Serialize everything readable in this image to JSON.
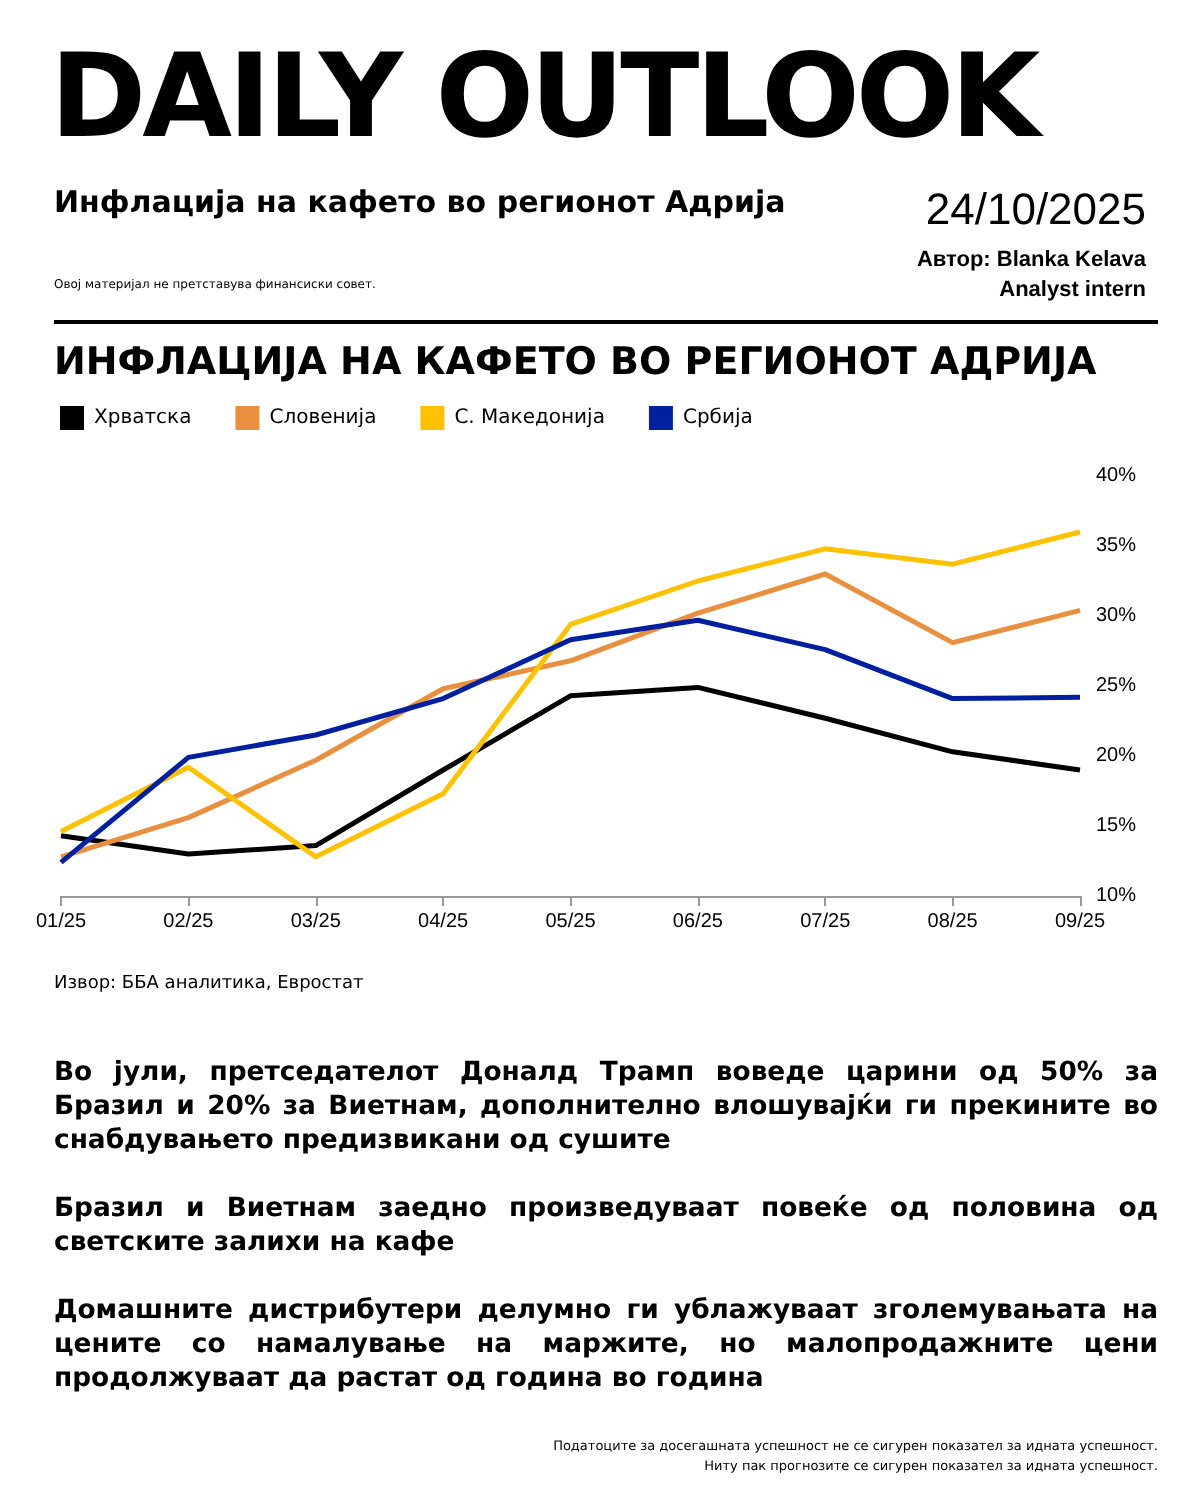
{
  "chart_data": {
    "type": "line",
    "title": "ИНФЛАЦИЈА НА КАФЕТО ВО РЕГИОНОТ АДРИЈА",
    "subtitle": "Инфлација на кафето во регионот Адрија",
    "annotations": [
      "DAILY OUTLOOK",
      "Овој материјал не претставува финансиски совет.",
      "24/10/2025",
      "Автор: Blanka Kelava",
      "Analyst intern",
      "Извор: ББА аналитика, Евростат",
      "Во јули, претседателот Доналд Трамп воведе царини од 50% за Бразил и 20% за Виетнам, дополнително влошувајќи ги прекините во снабдувањето предизвикани од сушите",
      "Бразил и Виетнам заедно произведуваат повеќе од половина од светските залихи на кафе",
      "Домашните дистрибутери делумно ги ублажуваат зголемувањата на цените со намалување на маржите, но малопродажните цени продолжуваат да растат од година во година",
      "Податоците за досегашната успешност не се сигурен показател за идната успешност.",
      "Ниту пак прогнозите се сигурен показател за идната успешност."
    ],
    "categories": [
      "01/25",
      "02/25",
      "03/25",
      "04/25",
      "05/25",
      "06/25",
      "07/25",
      "08/25",
      "09/25"
    ],
    "series": [
      {
        "name": "Хрватска",
        "color": "#000000",
        "values": [
          14.3,
          13.0,
          13.6,
          19.0,
          24.3,
          24.9,
          22.7,
          20.3,
          19.0
        ]
      },
      {
        "name": "Словенија",
        "color": "#e8903f",
        "values": [
          12.8,
          15.6,
          19.7,
          24.8,
          26.8,
          30.2,
          33.0,
          28.1,
          30.4
        ]
      },
      {
        "name": "С. Македонија",
        "color": "#fec200",
        "values": [
          14.6,
          19.2,
          12.8,
          17.3,
          29.4,
          32.5,
          34.8,
          33.7,
          36.0
        ]
      },
      {
        "name": "Србија",
        "color": "#0020a0",
        "values": [
          12.4,
          19.9,
          21.5,
          24.1,
          28.3,
          29.7,
          27.6,
          24.1,
          24.2
        ]
      }
    ],
    "ylim": [
      10,
      40
    ],
    "yticks": [
      {
        "value": 10,
        "label": "10%"
      },
      {
        "value": 15,
        "label": "15%"
      },
      {
        "value": 20,
        "label": "20%"
      },
      {
        "value": 25,
        "label": "25%"
      },
      {
        "value": 30,
        "label": "30%"
      },
      {
        "value": 35,
        "label": "35%"
      },
      {
        "value": 40,
        "label": "40%"
      }
    ],
    "grid": false,
    "legend": "top left",
    "marker": "none",
    "line_style": "solid"
  }
}
